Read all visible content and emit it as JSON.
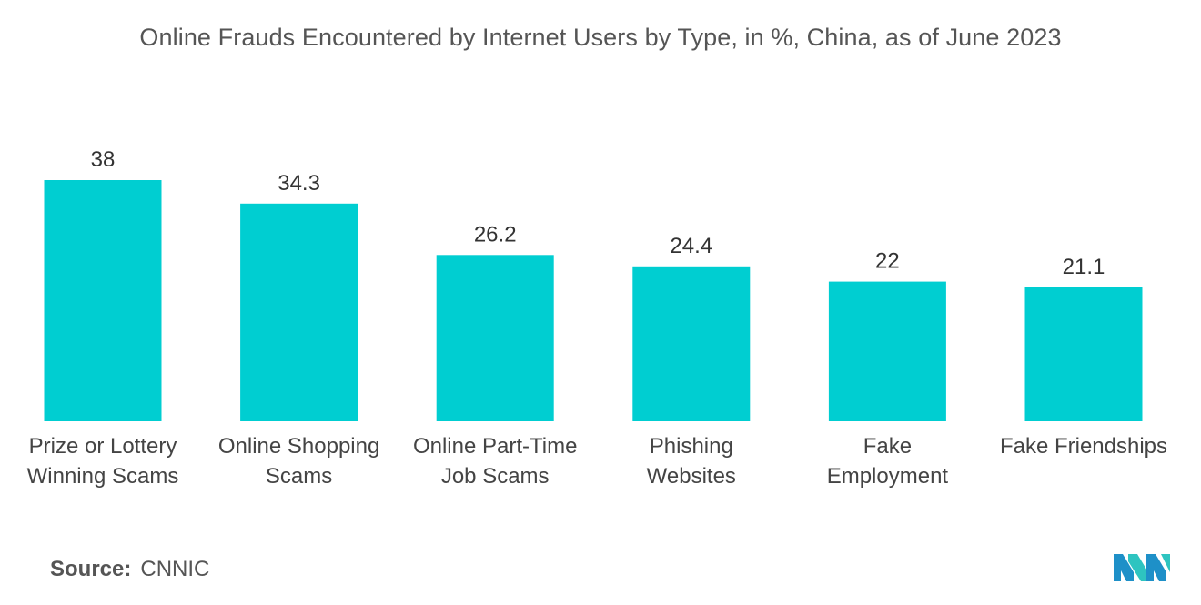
{
  "chart_data": {
    "type": "bar",
    "title": "Online Frauds Encountered by Internet Users by Type, in %, China, as of June 2023",
    "categories": [
      [
        "Prize or Lottery",
        "Winning Scams"
      ],
      [
        "Online Shopping",
        "Scams"
      ],
      [
        "Online Part-Time",
        "Job Scams"
      ],
      [
        "Phishing",
        "Websites"
      ],
      [
        "Fake",
        "Employment"
      ],
      [
        "Fake Friendships"
      ]
    ],
    "values": [
      38,
      34.3,
      26.2,
      24.4,
      22,
      21.1
    ],
    "value_labels": [
      "38",
      "34.3",
      "26.2",
      "24.4",
      "22",
      "21.1"
    ],
    "xlabel": "",
    "ylabel": "",
    "ylim": [
      0,
      38
    ],
    "grid": false,
    "legend": "none",
    "bar_color": "#00CED1"
  },
  "footer": {
    "source_label": "Source:",
    "source_value": "CNNIC"
  },
  "logo": {
    "icon": "mordor-intelligence-logo",
    "colors": [
      "#1E90C8",
      "#2EC4C0"
    ]
  }
}
